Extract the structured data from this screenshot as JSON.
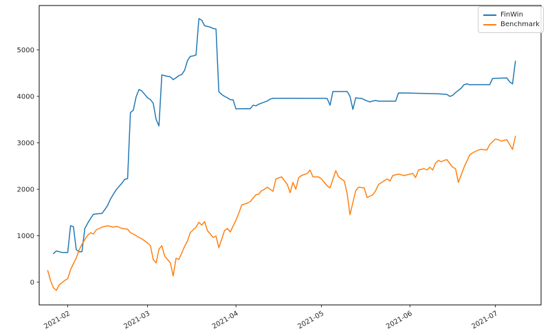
{
  "figure": {
    "background": "#ffffff",
    "spine_color": "#000000",
    "tick_color": "#262626"
  },
  "legend": {
    "position": "upper right",
    "items": [
      {
        "label": "FinWin",
        "color": "#1f77b4"
      },
      {
        "label": "Benchmark",
        "color": "#ff7f0e"
      }
    ]
  },
  "chart_data": {
    "type": "line",
    "grid": false,
    "legend_position": "upper right",
    "xlim": [
      "2021-01-22",
      "2021-07-17"
    ],
    "ylim": [
      -489,
      5955
    ],
    "y_ticks": [
      0,
      1000,
      2000,
      3000,
      4000,
      5000
    ],
    "x_ticks": [
      {
        "date": "2021-02-01",
        "label": "2021-02"
      },
      {
        "date": "2021-03-01",
        "label": "2021-03"
      },
      {
        "date": "2021-04-01",
        "label": "2021-04"
      },
      {
        "date": "2021-05-01",
        "label": "2021-05"
      },
      {
        "date": "2021-06-01",
        "label": "2021-06"
      },
      {
        "date": "2021-07-01",
        "label": "2021-07"
      }
    ],
    "series": [
      {
        "name": "FinWin",
        "color": "#1f77b4",
        "points": [
          [
            "2021-01-27",
            615
          ],
          [
            "2021-01-28",
            672
          ],
          [
            "2021-01-30",
            640
          ],
          [
            "2021-02-01",
            638
          ],
          [
            "2021-02-02",
            1215
          ],
          [
            "2021-02-03",
            1195
          ],
          [
            "2021-02-04",
            700
          ],
          [
            "2021-02-05",
            655
          ],
          [
            "2021-02-06",
            655
          ],
          [
            "2021-02-07",
            1155
          ],
          [
            "2021-02-08",
            1270
          ],
          [
            "2021-02-09",
            1370
          ],
          [
            "2021-02-10",
            1460
          ],
          [
            "2021-02-11",
            1470
          ],
          [
            "2021-02-13",
            1480
          ],
          [
            "2021-02-14",
            1560
          ],
          [
            "2021-02-15",
            1650
          ],
          [
            "2021-02-16",
            1790
          ],
          [
            "2021-02-17",
            1890
          ],
          [
            "2021-02-18",
            1990
          ],
          [
            "2021-02-19",
            2060
          ],
          [
            "2021-02-20",
            2130
          ],
          [
            "2021-02-21",
            2215
          ],
          [
            "2021-02-22",
            2230
          ],
          [
            "2021-02-23",
            3650
          ],
          [
            "2021-02-24",
            3700
          ],
          [
            "2021-02-25",
            3990
          ],
          [
            "2021-02-26",
            4148
          ],
          [
            "2021-02-27",
            4115
          ],
          [
            "2021-03-01",
            3970
          ],
          [
            "2021-03-02",
            3930
          ],
          [
            "2021-03-03",
            3850
          ],
          [
            "2021-03-04",
            3500
          ],
          [
            "2021-03-05",
            3363
          ],
          [
            "2021-03-06",
            4460
          ],
          [
            "2021-03-08",
            4430
          ],
          [
            "2021-03-09",
            4420
          ],
          [
            "2021-03-10",
            4360
          ],
          [
            "2021-03-11",
            4400
          ],
          [
            "2021-03-12",
            4445
          ],
          [
            "2021-03-13",
            4470
          ],
          [
            "2021-03-14",
            4560
          ],
          [
            "2021-03-15",
            4770
          ],
          [
            "2021-03-16",
            4860
          ],
          [
            "2021-03-17",
            4870
          ],
          [
            "2021-03-18",
            4890
          ],
          [
            "2021-03-19",
            5674
          ],
          [
            "2021-03-20",
            5640
          ],
          [
            "2021-03-21",
            5520
          ],
          [
            "2021-03-23",
            5490
          ],
          [
            "2021-03-24",
            5460
          ],
          [
            "2021-03-25",
            5450
          ],
          [
            "2021-03-26",
            4100
          ],
          [
            "2021-03-27",
            4040
          ],
          [
            "2021-03-28",
            4000
          ],
          [
            "2021-03-29",
            3970
          ],
          [
            "2021-03-30",
            3930
          ],
          [
            "2021-03-31",
            3925
          ],
          [
            "2021-04-01",
            3730
          ],
          [
            "2021-04-02",
            3733
          ],
          [
            "2021-04-05",
            3735
          ],
          [
            "2021-04-06",
            3733
          ],
          [
            "2021-04-07",
            3810
          ],
          [
            "2021-04-08",
            3795
          ],
          [
            "2021-04-09",
            3830
          ],
          [
            "2021-04-10",
            3855
          ],
          [
            "2021-04-12",
            3900
          ],
          [
            "2021-04-13",
            3940
          ],
          [
            "2021-04-14",
            3956
          ],
          [
            "2021-04-20",
            3958
          ],
          [
            "2021-04-26",
            3956
          ],
          [
            "2021-05-02",
            3956
          ],
          [
            "2021-05-03",
            3950
          ],
          [
            "2021-05-04",
            3810
          ],
          [
            "2021-05-05",
            4104
          ],
          [
            "2021-05-08",
            4104
          ],
          [
            "2021-05-10",
            4104
          ],
          [
            "2021-05-11",
            4000
          ],
          [
            "2021-05-12",
            3719
          ],
          [
            "2021-05-13",
            3970
          ],
          [
            "2021-05-14",
            3958
          ],
          [
            "2021-05-15",
            3956
          ],
          [
            "2021-05-17",
            3900
          ],
          [
            "2021-05-18",
            3881
          ],
          [
            "2021-05-19",
            3900
          ],
          [
            "2021-05-20",
            3911
          ],
          [
            "2021-05-21",
            3896
          ],
          [
            "2021-05-24",
            3896
          ],
          [
            "2021-05-27",
            3896
          ],
          [
            "2021-05-28",
            4074
          ],
          [
            "2021-06-01",
            4070
          ],
          [
            "2021-06-07",
            4060
          ],
          [
            "2021-06-11",
            4055
          ],
          [
            "2021-06-14",
            4040
          ],
          [
            "2021-06-15",
            4000
          ],
          [
            "2021-06-16",
            4020
          ],
          [
            "2021-06-17",
            4080
          ],
          [
            "2021-06-19",
            4178
          ],
          [
            "2021-06-20",
            4252
          ],
          [
            "2021-06-21",
            4267
          ],
          [
            "2021-06-22",
            4250
          ],
          [
            "2021-06-24",
            4252
          ],
          [
            "2021-06-28",
            4252
          ],
          [
            "2021-06-29",
            4252
          ],
          [
            "2021-06-30",
            4385
          ],
          [
            "2021-07-02",
            4390
          ],
          [
            "2021-07-05",
            4395
          ],
          [
            "2021-07-06",
            4310
          ],
          [
            "2021-07-07",
            4267
          ],
          [
            "2021-07-08",
            4756
          ]
        ]
      },
      {
        "name": "Benchmark",
        "color": "#ff7f0e",
        "points": [
          [
            "2021-01-25",
            252
          ],
          [
            "2021-01-26",
            30
          ],
          [
            "2021-01-27",
            -120
          ],
          [
            "2021-01-28",
            -178
          ],
          [
            "2021-01-29",
            -60
          ],
          [
            "2021-01-31",
            40
          ],
          [
            "2021-02-01",
            74
          ],
          [
            "2021-02-02",
            267
          ],
          [
            "2021-02-03",
            400
          ],
          [
            "2021-02-04",
            519
          ],
          [
            "2021-02-05",
            696
          ],
          [
            "2021-02-06",
            815
          ],
          [
            "2021-02-07",
            919
          ],
          [
            "2021-02-08",
            1007
          ],
          [
            "2021-02-09",
            1067
          ],
          [
            "2021-02-10",
            1037
          ],
          [
            "2021-02-11",
            1126
          ],
          [
            "2021-02-13",
            1185
          ],
          [
            "2021-02-14",
            1200
          ],
          [
            "2021-02-15",
            1215
          ],
          [
            "2021-02-17",
            1185
          ],
          [
            "2021-02-18",
            1200
          ],
          [
            "2021-02-19",
            1185
          ],
          [
            "2021-02-20",
            1156
          ],
          [
            "2021-02-22",
            1141
          ],
          [
            "2021-02-23",
            1067
          ],
          [
            "2021-02-24",
            1037
          ],
          [
            "2021-02-26",
            963
          ],
          [
            "2021-02-27",
            933
          ],
          [
            "2021-03-01",
            844
          ],
          [
            "2021-03-02",
            785
          ],
          [
            "2021-03-03",
            489
          ],
          [
            "2021-03-04",
            415
          ],
          [
            "2021-03-05",
            711
          ],
          [
            "2021-03-06",
            785
          ],
          [
            "2021-03-07",
            563
          ],
          [
            "2021-03-09",
            415
          ],
          [
            "2021-03-10",
            133
          ],
          [
            "2021-03-11",
            519
          ],
          [
            "2021-03-12",
            489
          ],
          [
            "2021-03-14",
            770
          ],
          [
            "2021-03-15",
            889
          ],
          [
            "2021-03-16",
            1067
          ],
          [
            "2021-03-18",
            1185
          ],
          [
            "2021-03-19",
            1289
          ],
          [
            "2021-03-20",
            1230
          ],
          [
            "2021-03-21",
            1304
          ],
          [
            "2021-03-22",
            1111
          ],
          [
            "2021-03-24",
            963
          ],
          [
            "2021-03-25",
            993
          ],
          [
            "2021-03-26",
            741
          ],
          [
            "2021-03-28",
            1111
          ],
          [
            "2021-03-29",
            1156
          ],
          [
            "2021-03-30",
            1081
          ],
          [
            "2021-04-01",
            1333
          ],
          [
            "2021-04-02",
            1481
          ],
          [
            "2021-04-03",
            1659
          ],
          [
            "2021-04-05",
            1704
          ],
          [
            "2021-04-06",
            1733
          ],
          [
            "2021-04-08",
            1881
          ],
          [
            "2021-04-09",
            1896
          ],
          [
            "2021-04-10",
            1970
          ],
          [
            "2021-04-11",
            2000
          ],
          [
            "2021-04-12",
            2044
          ],
          [
            "2021-04-14",
            1956
          ],
          [
            "2021-04-15",
            2222
          ],
          [
            "2021-04-17",
            2267
          ],
          [
            "2021-04-19",
            2104
          ],
          [
            "2021-04-20",
            1926
          ],
          [
            "2021-04-21",
            2148
          ],
          [
            "2021-04-22",
            2000
          ],
          [
            "2021-04-23",
            2252
          ],
          [
            "2021-04-24",
            2296
          ],
          [
            "2021-04-26",
            2341
          ],
          [
            "2021-04-27",
            2415
          ],
          [
            "2021-04-28",
            2267
          ],
          [
            "2021-04-30",
            2267
          ],
          [
            "2021-05-01",
            2222
          ],
          [
            "2021-05-03",
            2074
          ],
          [
            "2021-05-04",
            2030
          ],
          [
            "2021-05-06",
            2400
          ],
          [
            "2021-05-07",
            2267
          ],
          [
            "2021-05-09",
            2178
          ],
          [
            "2021-05-10",
            1900
          ],
          [
            "2021-05-11",
            1452
          ],
          [
            "2021-05-13",
            1970
          ],
          [
            "2021-05-14",
            2044
          ],
          [
            "2021-05-16",
            2030
          ],
          [
            "2021-05-17",
            1822
          ],
          [
            "2021-05-19",
            1881
          ],
          [
            "2021-05-20",
            1970
          ],
          [
            "2021-05-21",
            2104
          ],
          [
            "2021-05-24",
            2222
          ],
          [
            "2021-05-25",
            2178
          ],
          [
            "2021-05-26",
            2296
          ],
          [
            "2021-05-28",
            2326
          ],
          [
            "2021-05-30",
            2296
          ],
          [
            "2021-06-01",
            2326
          ],
          [
            "2021-06-02",
            2341
          ],
          [
            "2021-06-03",
            2252
          ],
          [
            "2021-06-04",
            2415
          ],
          [
            "2021-06-06",
            2444
          ],
          [
            "2021-06-07",
            2415
          ],
          [
            "2021-06-08",
            2474
          ],
          [
            "2021-06-09",
            2415
          ],
          [
            "2021-06-10",
            2563
          ],
          [
            "2021-06-11",
            2622
          ],
          [
            "2021-06-12",
            2593
          ],
          [
            "2021-06-13",
            2622
          ],
          [
            "2021-06-14",
            2637
          ],
          [
            "2021-06-16",
            2474
          ],
          [
            "2021-06-17",
            2444
          ],
          [
            "2021-06-18",
            2148
          ],
          [
            "2021-06-20",
            2474
          ],
          [
            "2021-06-22",
            2741
          ],
          [
            "2021-06-23",
            2785
          ],
          [
            "2021-06-24",
            2815
          ],
          [
            "2021-06-25",
            2844
          ],
          [
            "2021-06-26",
            2859
          ],
          [
            "2021-06-28",
            2844
          ],
          [
            "2021-06-29",
            2963
          ],
          [
            "2021-07-01",
            3081
          ],
          [
            "2021-07-02",
            3067
          ],
          [
            "2021-07-03",
            3037
          ],
          [
            "2021-07-05",
            3067
          ],
          [
            "2021-07-07",
            2859
          ],
          [
            "2021-07-08",
            3141
          ]
        ]
      }
    ]
  }
}
